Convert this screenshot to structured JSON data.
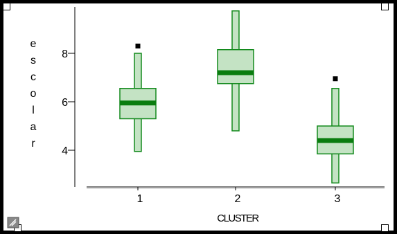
{
  "chart_data": {
    "type": "boxplot",
    "xlabel": "CLUSTER",
    "ylabel": "escolar",
    "categories": [
      "1",
      "2",
      "3"
    ],
    "ylim": [
      2.2,
      9.9
    ],
    "yticks": [
      4,
      6,
      8
    ],
    "boxes": [
      {
        "category": "1",
        "whisker_low": 3.95,
        "q1": 5.3,
        "median": 5.95,
        "q3": 6.55,
        "whisker_high": 8.0,
        "outliers": [
          8.3
        ]
      },
      {
        "category": "2",
        "whisker_low": 4.8,
        "q1": 6.75,
        "median": 7.2,
        "q3": 8.15,
        "whisker_high": 9.75,
        "outliers": []
      },
      {
        "category": "3",
        "whisker_low": 2.65,
        "q1": 3.85,
        "median": 4.4,
        "q3": 5.0,
        "whisker_high": 6.55,
        "outliers": [
          6.95
        ]
      }
    ],
    "colors": {
      "box_fill": "#c4e3c4",
      "box_edge": "#138a1d",
      "median": "#0a7d0f",
      "outlier": "#000000"
    },
    "grid": false
  },
  "ui": {
    "frame_color": "#000000",
    "corner_icon": "resize-icon"
  }
}
